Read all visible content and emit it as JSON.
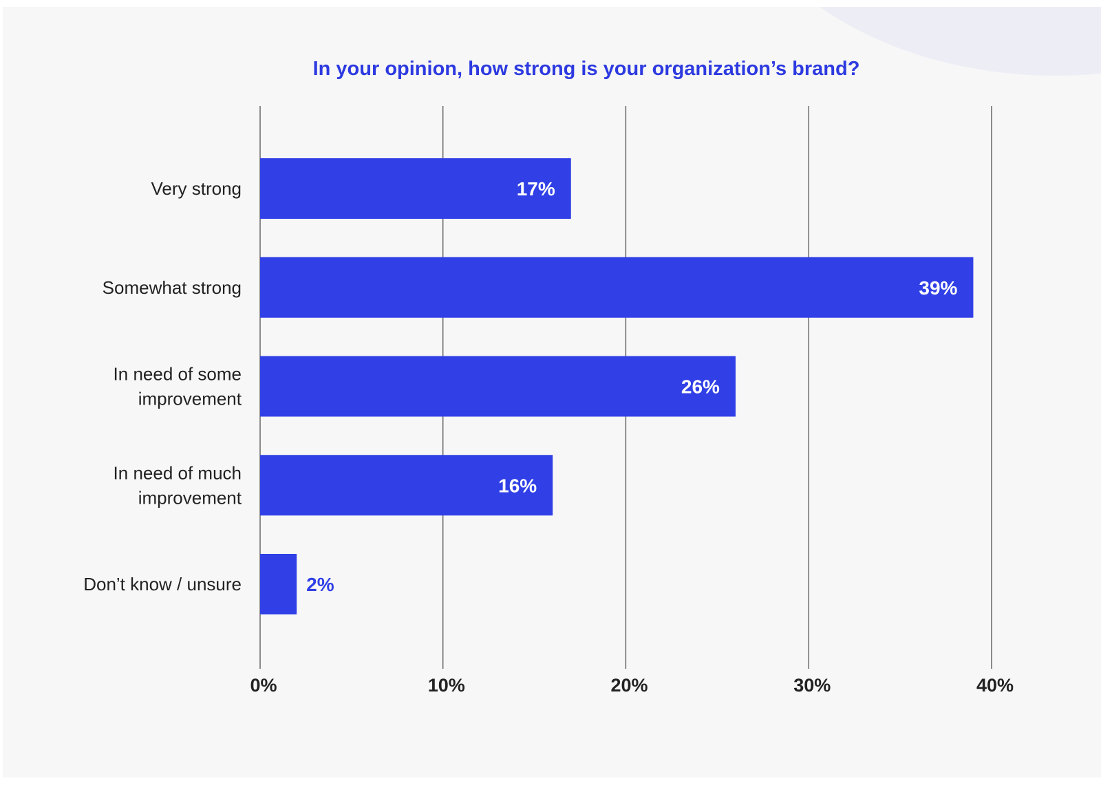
{
  "chart_data": {
    "type": "bar",
    "orientation": "horizontal",
    "title": "In your opinion, how strong is your organization’s brand?",
    "categories": [
      [
        "Very strong"
      ],
      [
        "Somewhat strong"
      ],
      [
        "In need of some",
        "improvement"
      ],
      [
        "In need of much",
        "improvement"
      ],
      [
        "Don’t know / unsure"
      ]
    ],
    "values": [
      17,
      39,
      26,
      16,
      2
    ],
    "value_labels": [
      "17%",
      "39%",
      "26%",
      "16%",
      "2%"
    ],
    "xlim": [
      0,
      40
    ],
    "xticks": [
      0,
      10,
      20,
      30,
      40
    ],
    "xtick_labels": [
      "0%",
      "10%",
      "20%",
      "30%",
      "40%"
    ],
    "grid": true,
    "xlabel": "",
    "ylabel": ""
  },
  "colors": {
    "bar": "#3040e6",
    "title": "#2d3ae0",
    "grid": "#444444",
    "background": "#f7f7f7"
  }
}
